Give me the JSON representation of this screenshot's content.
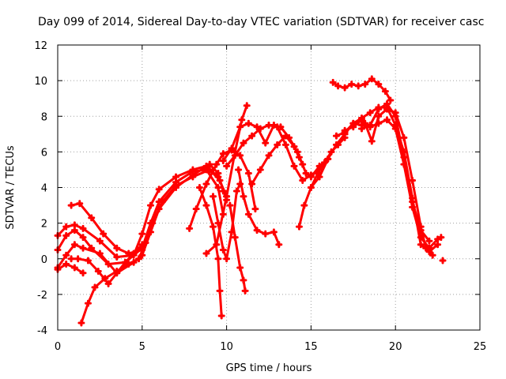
{
  "chart_data": {
    "type": "scatter",
    "title": "Day 099 of 2014, Sidereal Day-to-day VTEC variation (SDTVAR) for receiver casc",
    "xlabel": "GPS time / hours",
    "ylabel": "SDTVAR / TECUs",
    "xlim": [
      0,
      25
    ],
    "ylim": [
      -4,
      12
    ],
    "xticks": [
      0,
      5,
      10,
      15,
      20,
      25
    ],
    "yticks": [
      -4,
      -2,
      0,
      2,
      4,
      6,
      8,
      10,
      12
    ],
    "grid": true,
    "marker": "+",
    "color": "#ff0000",
    "series": [
      {
        "name": "s1",
        "x": [
          0,
          0.5,
          1,
          1.5,
          2.5,
          3.5,
          4.5,
          5,
          5.5,
          6,
          7,
          8,
          8.8,
          9.5,
          10
        ],
        "y": [
          1.3,
          1.8,
          1.9,
          1.7,
          1,
          0.1,
          0.2,
          1.4,
          3,
          3.9,
          4.6,
          5,
          5.2,
          4.6,
          3.5
        ]
      },
      {
        "name": "s2",
        "x": [
          0,
          0.5,
          1,
          1.5,
          2,
          3,
          4,
          5,
          5.5,
          6,
          7,
          8,
          8.8,
          9.5,
          9.8
        ],
        "y": [
          0.5,
          1.3,
          1.6,
          1.2,
          0.6,
          -0.3,
          -0.2,
          0.6,
          2,
          3.2,
          4.3,
          4.9,
          5,
          4,
          2.5
        ]
      },
      {
        "name": "s3",
        "x": [
          0,
          0.5,
          1,
          1.5,
          2.5,
          3.5,
          4.5,
          5,
          5.5,
          6,
          7,
          8,
          9,
          9.5,
          9.8
        ],
        "y": [
          -0.5,
          0.2,
          0.8,
          0.6,
          0.3,
          -0.8,
          -0.2,
          0.2,
          1.5,
          2.8,
          4,
          4.7,
          5.3,
          4.8,
          3.8
        ]
      },
      {
        "name": "s4",
        "x": [
          0,
          0.5,
          1,
          1.5
        ],
        "y": [
          -0.6,
          -0.3,
          -0.5,
          -0.8
        ]
      },
      {
        "name": "s5",
        "x": [
          0.8,
          1.2,
          1.8,
          2.4,
          3,
          3.5,
          4,
          4.5,
          5
        ],
        "y": [
          0,
          0,
          -0.1,
          -0.7,
          -1.4,
          -0.8,
          -0.2,
          0.3,
          0.8
        ]
      },
      {
        "name": "s6",
        "x": [
          0.8,
          1.3,
          2,
          2.7,
          3.5,
          4.2,
          5
        ],
        "y": [
          3,
          3.1,
          2.3,
          1.4,
          0.6,
          0.3,
          0.5
        ]
      },
      {
        "name": "s7",
        "x": [
          1.4,
          1.8,
          2.2,
          2.8,
          3.5,
          4.2,
          4.8,
          5.2,
          5.6,
          6.2,
          7,
          8,
          9,
          9.6,
          10
        ],
        "y": [
          -3.6,
          -2.5,
          -1.6,
          -1.1,
          -0.7,
          -0.3,
          0,
          0.9,
          2,
          3.2,
          4.1,
          4.6,
          5,
          4.4,
          3.3
        ]
      },
      {
        "name": "s8",
        "x": [
          7.8,
          8.2,
          8.8,
          9.4,
          9.8,
          10.3,
          10.8,
          11.3,
          11.7
        ],
        "y": [
          1.7,
          2.8,
          4.2,
          5.3,
          5.9,
          6.1,
          5.8,
          4.8,
          2.8
        ]
      },
      {
        "name": "s9",
        "x": [
          8.4,
          8.8,
          9.2,
          9.5,
          9.6,
          9.7
        ],
        "y": [
          4,
          3,
          1.8,
          0,
          -1.8,
          -3.2
        ]
      },
      {
        "name": "s10",
        "x": [
          9.2,
          9.5,
          9.8,
          10,
          10.3,
          10.6,
          10.8
        ],
        "y": [
          3.5,
          2,
          0.5,
          0,
          1.5,
          3.8,
          4.2
        ]
      },
      {
        "name": "s11",
        "x": [
          10.2,
          10.5,
          10.8,
          11,
          11.1
        ],
        "y": [
          3,
          1.2,
          -0.5,
          -1.2,
          -1.8
        ]
      },
      {
        "name": "s12",
        "x": [
          10.7,
          11,
          11.3,
          11.8,
          12.3,
          12.8,
          13.1
        ],
        "y": [
          5,
          3.5,
          2.5,
          1.6,
          1.4,
          1.5,
          0.8
        ]
      },
      {
        "name": "s13",
        "x": [
          8.8,
          9.4,
          10,
          10.5,
          10.9,
          11.2
        ],
        "y": [
          0.3,
          0.8,
          3.5,
          6,
          7.8,
          8.6
        ]
      },
      {
        "name": "s14",
        "x": [
          9.8,
          10.3,
          10.8,
          11.3,
          11.8,
          12.3,
          12.8,
          13.2,
          13.7,
          14.2,
          14.7,
          15,
          15.5,
          16
        ],
        "y": [
          5.5,
          6.2,
          7.4,
          7.6,
          7.4,
          6.5,
          7.5,
          7.4,
          6.8,
          6,
          4.8,
          4.6,
          5.2,
          5.6
        ]
      },
      {
        "name": "s15",
        "x": [
          10,
          10.5,
          11,
          11.5,
          12,
          12.5,
          13,
          13.5,
          14,
          14.5,
          15,
          15.5
        ],
        "y": [
          5.2,
          5.8,
          6.5,
          6.9,
          7.3,
          7.5,
          7.4,
          6.4,
          5.2,
          4.4,
          4.7,
          5
        ]
      },
      {
        "name": "s16",
        "x": [
          11.5,
          12,
          12.5,
          13,
          13.5,
          14,
          14.3,
          14.5
        ],
        "y": [
          4.2,
          5,
          5.8,
          6.4,
          6.9,
          6.3,
          5.7,
          5.3
        ]
      },
      {
        "name": "s17",
        "x": [
          14.3,
          14.6,
          15,
          15.4,
          15.8,
          16.2,
          16.6,
          17
        ],
        "y": [
          1.8,
          3,
          4,
          4.8,
          5.4,
          6,
          6.4,
          6.8
        ]
      },
      {
        "name": "s18",
        "x": [
          15,
          15.5,
          16,
          16.5,
          17,
          17.5,
          18,
          18.5,
          19,
          19.5,
          20,
          20.5,
          21,
          21.5,
          22,
          22.5
        ],
        "y": [
          4,
          4.6,
          5.6,
          6.4,
          7,
          7.6,
          7.9,
          8.2,
          8.5,
          8.5,
          7.5,
          6,
          3.4,
          0.8,
          0.4,
          0.8
        ]
      },
      {
        "name": "s19",
        "x": [
          16.5,
          17,
          17.5,
          18,
          18.5,
          19,
          19.5,
          20,
          20.5,
          21,
          21.5,
          22,
          22.5,
          22.7
        ],
        "y": [
          6.9,
          7.1,
          7.6,
          7.5,
          7.4,
          7.6,
          7.8,
          7.3,
          5.3,
          2.9,
          1.2,
          0.6,
          1.1,
          1.2
        ]
      },
      {
        "name": "s20",
        "x": [
          17,
          17.5,
          18,
          18.2,
          18.6,
          19,
          19.5,
          20,
          20.5,
          21,
          21.5,
          21.8,
          22.2
        ],
        "y": [
          7.2,
          7.4,
          7.8,
          7.6,
          6.6,
          8,
          8.4,
          8.2,
          6.8,
          4.4,
          1.8,
          0.6,
          0.2
        ]
      },
      {
        "name": "s21",
        "x": [
          18,
          18.5,
          19,
          19.5,
          20,
          20.5,
          21,
          21.5,
          22
        ],
        "y": [
          7.3,
          7.5,
          8.4,
          8.7,
          8,
          5.7,
          3.2,
          1.6,
          1
        ]
      },
      {
        "name": "s22",
        "x": [
          16.3,
          16.6,
          17,
          17.4,
          17.8,
          18.2,
          18.6,
          19,
          19.4,
          19.7
        ],
        "y": [
          9.9,
          9.7,
          9.6,
          9.8,
          9.7,
          9.8,
          10.1,
          9.8,
          9.4,
          8.9
        ]
      },
      {
        "name": "s23",
        "x": [
          22.8
        ],
        "y": [
          -0.1
        ]
      }
    ]
  }
}
